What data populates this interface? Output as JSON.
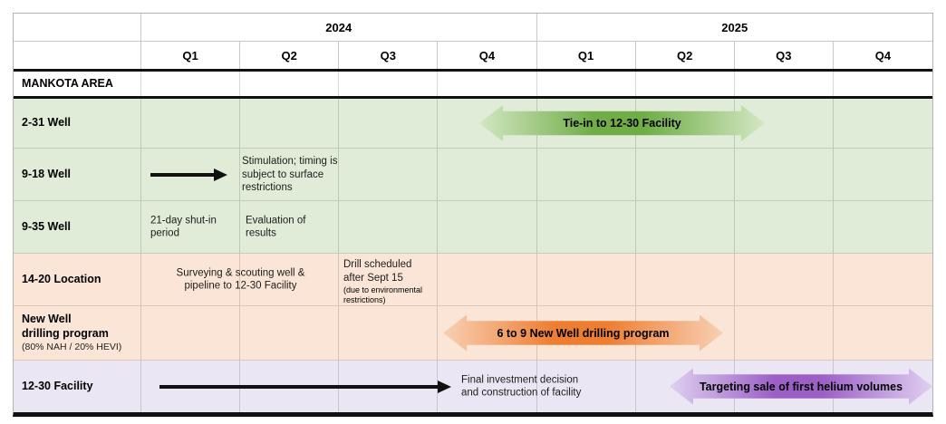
{
  "header": {
    "years": [
      "2024",
      "2025"
    ],
    "quarters": [
      "Q1",
      "Q2",
      "Q3",
      "Q4",
      "Q1",
      "Q2",
      "Q3",
      "Q4"
    ],
    "section_label": "MANKOTA AREA"
  },
  "rows": {
    "well_2_31": {
      "label": "2-31 Well",
      "arrow_label": "Tie-in to 12-30 Facility"
    },
    "well_9_18": {
      "label": "9-18 Well",
      "note": [
        "Stimulation; timing is",
        "subject to surface",
        "restrictions"
      ]
    },
    "well_9_35": {
      "label": "9-35 Well",
      "note_q1": [
        "21-day shut-in",
        "period"
      ],
      "note_q2": [
        "Evaluation of",
        "results"
      ]
    },
    "location_14_20": {
      "label": "14-20 Location",
      "note_q1_q2": [
        "Surveying & scouting well &",
        "pipeline to 12-30 Facility"
      ],
      "note_q3": [
        "Drill scheduled",
        "after Sept 15"
      ],
      "note_q3_small": [
        "(due to environmental",
        "restrictions)"
      ]
    },
    "new_well_program": {
      "label": [
        "New Well",
        "drilling program"
      ],
      "sublabel": "(80% NAH / 20% HEVI)",
      "arrow_label": "6 to 9 New Well drilling program"
    },
    "facility_12_30": {
      "label": "12-30 Facility",
      "note": [
        "Final investment decision",
        "and construction of facility"
      ],
      "arrow_label": "Targeting sale of first helium volumes"
    }
  },
  "colors": {
    "row_green": "#e0ecd7",
    "row_peach": "#fbe5d6",
    "row_purple": "#ebe6f3",
    "arrow_green": "#70ad47",
    "arrow_green_light": "#d3e7c3",
    "arrow_orange": "#ed7d31",
    "arrow_orange_light": "#f8d0b4",
    "arrow_purple": "#9b5fc6",
    "arrow_purple_light": "#dfd0f0",
    "line_black": "#111111"
  }
}
